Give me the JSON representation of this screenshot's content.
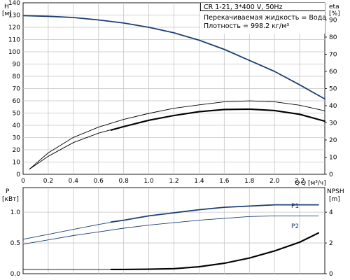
{
  "chart_data": {
    "type": "line",
    "info": {
      "model": "CR 1-21, 3*400 V, 50Hz",
      "liquid": "Перекачиваемая жидкость = Вода",
      "density": "Плотность = 998.2 кг/м³"
    },
    "colors": {
      "blue": "#1b3f73",
      "black": "#000000",
      "grid": "#c4c4c4"
    },
    "upper": {
      "xlabel": "Q [м³/ч]",
      "xlim": [
        0,
        2.4
      ],
      "x_ticks": [
        "0",
        "0.2",
        "0.4",
        "0.6",
        "0.8",
        "1.0",
        "1.2",
        "1.4",
        "1.6",
        "1.8",
        "2.0",
        "2.2"
      ],
      "x_tick_values": [
        0,
        0.2,
        0.4,
        0.6,
        0.8,
        1.0,
        1.2,
        1.4,
        1.6,
        1.8,
        2.0,
        2.2
      ],
      "x_end_label": "Q",
      "y_left": {
        "label": "H",
        "unit": "[м]",
        "ylim": [
          0,
          140
        ],
        "ticks": [
          0,
          10,
          20,
          30,
          40,
          50,
          60,
          70,
          80,
          90,
          100,
          110,
          120,
          130,
          140
        ]
      },
      "y_right": {
        "label": "eta",
        "unit": "[%]",
        "ylim": [
          0,
          100
        ],
        "ticks": [
          0,
          10,
          20,
          30,
          40,
          50,
          60,
          70,
          80,
          90
        ]
      },
      "series": [
        {
          "axis": "H",
          "color": "blue",
          "width": 1.8,
          "x": [
            0,
            0.2,
            0.4,
            0.6,
            0.8,
            1.0,
            1.2,
            1.4,
            1.6,
            1.8,
            2.0,
            2.2,
            2.4
          ],
          "y": [
            129.5,
            129,
            128,
            126,
            123.5,
            120,
            115.5,
            109.5,
            102,
            93,
            84,
            73,
            61.5
          ]
        },
        {
          "axis": "eta",
          "color": "black",
          "width": 0.9,
          "x": [
            0.05,
            0.2,
            0.4,
            0.6,
            0.8,
            1.0,
            1.2,
            1.4,
            1.6,
            1.8,
            2.0,
            2.2,
            2.4
          ],
          "y": [
            3,
            12.5,
            21.5,
            27.5,
            32,
            35.5,
            38.5,
            40.5,
            42.3,
            42.8,
            42.3,
            40.3,
            37
          ]
        },
        {
          "axis": "eta",
          "color": "black",
          "width": 0.9,
          "x": [
            0.05,
            0.2,
            0.4,
            0.6,
            0.8,
            1.0,
            1.2,
            1.4,
            1.6,
            1.8,
            2.0,
            2.2,
            2.4
          ],
          "y": [
            3,
            10.5,
            18.5,
            24,
            28,
            31.5,
            34.3,
            36.5,
            37.8,
            38,
            37.2,
            35,
            31
          ]
        },
        {
          "axis": "eta",
          "color": "black",
          "width": 2.1,
          "x": [
            0.7,
            0.8,
            1.0,
            1.2,
            1.4,
            1.6,
            1.8,
            2.0,
            2.2,
            2.4
          ],
          "y": [
            25.8,
            27.8,
            31.5,
            34.3,
            36.5,
            37.8,
            38,
            37.2,
            35,
            31
          ]
        }
      ]
    },
    "lower": {
      "xlim": [
        0,
        2.4
      ],
      "y_left": {
        "label": "P",
        "unit": "[кВт]",
        "ylim": [
          0,
          1.4
        ],
        "ticks": [
          0,
          0.5,
          1.0
        ],
        "tick_labels": [
          "0.0",
          "0.5",
          "1.0"
        ]
      },
      "y_right": {
        "label": "NPSH",
        "unit": "[m]",
        "ylim": [
          0,
          5.6
        ],
        "ticks": [
          0,
          2,
          4
        ],
        "tick_labels": [
          "0",
          "2",
          "4"
        ]
      },
      "series": [
        {
          "name": "P1",
          "axis": "P",
          "color": "blue",
          "width": 0.9,
          "x": [
            0,
            0.2,
            0.4,
            0.6,
            0.8,
            1.0,
            1.2,
            1.4,
            1.6,
            1.8,
            2.0,
            2.2,
            2.35
          ],
          "y": [
            0.56,
            0.64,
            0.72,
            0.8,
            0.87,
            0.94,
            0.99,
            1.04,
            1.08,
            1.1,
            1.12,
            1.12,
            1.12
          ]
        },
        {
          "axis": "P",
          "color": "blue",
          "width": 1.8,
          "x": [
            0.7,
            0.8,
            1.0,
            1.2,
            1.4,
            1.6,
            1.8,
            2.0,
            2.2,
            2.35
          ],
          "y": [
            0.84,
            0.87,
            0.94,
            0.99,
            1.04,
            1.08,
            1.1,
            1.12,
            1.12,
            1.12
          ]
        },
        {
          "name": "P2",
          "axis": "P",
          "color": "blue",
          "width": 0.9,
          "x": [
            0,
            0.2,
            0.4,
            0.6,
            0.8,
            1.0,
            1.2,
            1.4,
            1.6,
            1.8,
            2.0,
            2.2,
            2.35
          ],
          "y": [
            0.48,
            0.55,
            0.62,
            0.68,
            0.74,
            0.79,
            0.83,
            0.87,
            0.9,
            0.93,
            0.94,
            0.94,
            0.94
          ]
        },
        {
          "axis": "NPSH",
          "color": "black",
          "width": 0.9,
          "x": [
            0,
            0.2,
            0.4,
            0.6,
            0.7
          ],
          "y": [
            0.28,
            0.28,
            0.28,
            0.28,
            0.28
          ]
        },
        {
          "axis": "NPSH",
          "color": "black",
          "width": 2.1,
          "x": [
            0.7,
            0.8,
            1.0,
            1.2,
            1.4,
            1.6,
            1.8,
            2.0,
            2.2,
            2.35
          ],
          "y": [
            0.28,
            0.28,
            0.29,
            0.33,
            0.45,
            0.68,
            1.02,
            1.48,
            2.05,
            2.65
          ]
        }
      ]
    }
  }
}
